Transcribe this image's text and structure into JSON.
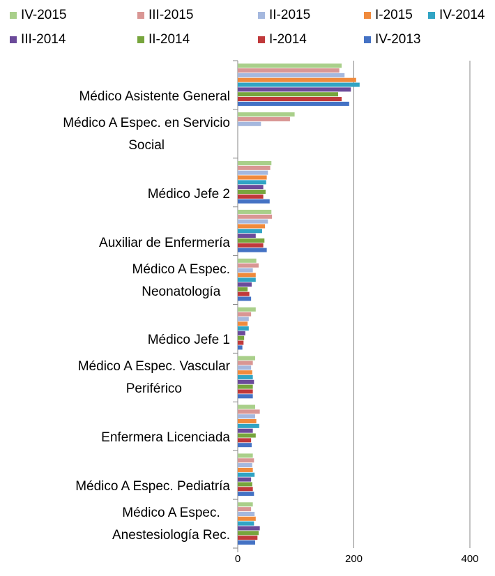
{
  "chart_data": {
    "type": "hbar",
    "categories": [
      "Médico Asistente General",
      "Médico A Espec. en  Servicio\nSocial",
      "Médico Jefe 2",
      "Auxiliar de Enfermería",
      "Médico A Espec.\nNeonatología",
      "Médico Jefe 1",
      "Médico A Espec.  Vascular\nPeriférico",
      "Enfermera Licenciada",
      "Médico A Espec.  Pediatría",
      "Médico A Espec.\nAnestesiología Rec."
    ],
    "series": [
      {
        "name": "IV-2015",
        "color": "#a9cf8a",
        "values": [
          179,
          98,
          58,
          58,
          32,
          31,
          30,
          30,
          26,
          26
        ]
      },
      {
        "name": "III-2015",
        "color": "#d99694",
        "values": [
          175,
          90,
          56,
          59,
          36,
          23,
          26,
          38,
          28,
          23
        ]
      },
      {
        "name": "II-2015",
        "color": "#a5b8de",
        "values": [
          184,
          40,
          52,
          52,
          26,
          19,
          23,
          30,
          25,
          29
        ]
      },
      {
        "name": "I-2015",
        "color": "#f08a3c",
        "values": [
          204,
          null,
          50,
          47,
          31,
          17,
          25,
          32,
          26,
          31
        ]
      },
      {
        "name": "IV-2014",
        "color": "#31a4c4",
        "values": [
          210,
          null,
          49,
          42,
          31,
          19,
          26,
          37,
          29,
          28
        ]
      },
      {
        "name": "III-2014",
        "color": "#6b4a9a",
        "values": [
          195,
          null,
          44,
          31,
          24,
          13,
          28,
          26,
          23,
          38
        ]
      },
      {
        "name": "II-2014",
        "color": "#77a53d",
        "values": [
          173,
          null,
          48,
          46,
          17,
          11,
          26,
          31,
          25,
          36
        ]
      },
      {
        "name": "I-2014",
        "color": "#c0393b",
        "values": [
          179,
          null,
          44,
          44,
          20,
          10,
          26,
          23,
          26,
          34
        ]
      },
      {
        "name": "IV-2013",
        "color": "#4472c4",
        "values": [
          192,
          null,
          55,
          50,
          23,
          8,
          26,
          24,
          28,
          30
        ]
      }
    ],
    "xlim": [
      0,
      400
    ],
    "xticks": [
      0,
      200,
      400
    ],
    "grid": true
  }
}
